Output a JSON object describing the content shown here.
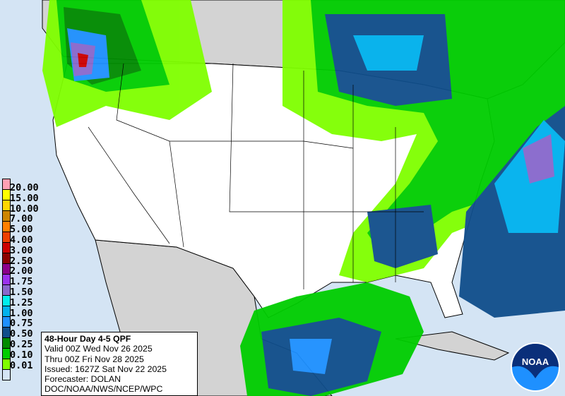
{
  "title": "48-Hour Day 4-5 QPF",
  "valid": "Valid 00Z Wed Nov 26 2025",
  "thru": "Thru 00Z Fri Nov 28 2025",
  "issued": "Issued: 1627Z Sat Nov 22 2025",
  "forecaster": "Forecaster: DOLAN",
  "agency": "DOC/NOAA/NWS/NCEP/WPC",
  "logo_text": "NOAA",
  "legend": {
    "labels": [
      "20.00",
      "15.00",
      "10.00",
      "7.00",
      "5.00",
      "4.00",
      "3.00",
      "2.50",
      "2.00",
      "1.75",
      "1.50",
      "1.25",
      "1.00",
      "0.75",
      "0.50",
      "0.25",
      "0.10",
      "0.01"
    ],
    "colors": [
      "#ffa0b4",
      "#ffff00",
      "#ffd700",
      "#cd8500",
      "#ff7f00",
      "#ee4000",
      "#cd0000",
      "#8b0000",
      "#8b008b",
      "#9a32ee",
      "#8968cd",
      "#00eeee",
      "#00b2ee",
      "#1e90ff",
      "#104e8b",
      "#008b00",
      "#00cd00",
      "#7fff00",
      "#d4e4f4"
    ]
  },
  "colors": {
    "ocean": "#d4e4f4",
    "land": "#d3d3d3",
    "us": "#ffffff"
  }
}
